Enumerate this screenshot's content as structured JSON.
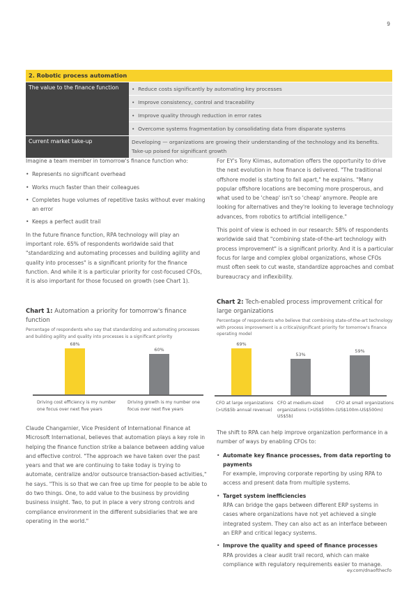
{
  "page_number": "9",
  "table": {
    "title": "2. Robotic process automation",
    "rows": [
      {
        "label": "The value to the finance function",
        "items": [
          "Reduce costs significantly by automating key processes",
          "Improve consistency, control and traceability",
          "Improve quality through reduction in error rates",
          "Overcome systems fragmentation by consolidating data from disparate systems"
        ]
      },
      {
        "label": "Current market take-up",
        "text": "Developing — organizations are growing their understanding of the technology and its benefits. Take-up poised for significant growth"
      }
    ]
  },
  "left": {
    "intro": "Imagine a team member in tomorrow's finance function who:",
    "bullets": [
      "Represents no significant overhead",
      "Works much faster than their colleagues",
      "Completes huge volumes of repetitive tasks without ever making an error",
      "Keeps a perfect audit trail"
    ],
    "para": "In the future finance function, RPA technology will play an important role. 65% of respondents worldwide said that \"standardizing and automating processes and building agility and quality into processes\" is a significant priority for the finance function. And while it is a particular priority for cost-focused CFOs, it is also important for those focused on growth (see Chart 1).",
    "para2": "Claude Changarnier, Vice President of International Finance at Microsoft International, believes that automation plays a key role in helping the finance function strike a balance between adding value and effective control. \"The approach we have taken over the past years and that we are continuing to take today is trying to automate, centralize and/or outsource transaction-based activities,\" he says. \"This is so that we can free up time for people to be able to do two things. One, to add value to the business by providing business insight. Two, to put in place a very strong controls and compliance environment in the different subsidiaries that we are operating in the world.\""
  },
  "right": {
    "para1": "For EY's Tony Klimas, automation offers the opportunity to drive the next evolution in how finance is delivered. \"The traditional offshore model is starting to fall apart,\" he explains. \"Many popular offshore locations are becoming more prosperous, and what used to be 'cheap' isn't so 'cheap' anymore. People are looking for alternatives and they're looking to leverage technology advances, from robotics to artificial intelligence.\"",
    "para2": "This point of view is echoed in our research: 58% of respondents worldwide said that \"combining state-of-the-art technology with process improvement\" is a significant priority. And it is a particular focus for large and complex global organizations, whose CFOs must often seek to cut waste, standardize approaches and combat bureaucracy and inflexibility.",
    "para3": "The shift to RPA can help improve organization performance in a number of ways by enabling CFOs to:",
    "bullets": [
      {
        "title": "Automate key finance processes, from data reporting to payments",
        "text": "For example, improving corporate reporting by using RPA to access and present data from multiple systems."
      },
      {
        "title": "Target system inefficiencies",
        "text": "RPA can bridge the gaps between different ERP systems in cases where organizations have not yet achieved a single integrated system. They can also act as an interface between an ERP and critical legacy systems."
      },
      {
        "title": "Improve the quality and speed of finance processes",
        "text": "RPA provides a clear audit trail record, which can make compliance with regulatory requirements easier to manage."
      }
    ]
  },
  "chart_data": [
    {
      "type": "bar",
      "title_prefix": "Chart 1:",
      "title": "Automation a priority for tomorrow's finance function",
      "subtitle": "Percentage of respondents who say that standardizing and automating processes and building agility and quality into processes is a significant priority",
      "categories": [
        "Driving cost efficiency is my number one focus over next five years",
        "Driving growth is my number one focus over next five years"
      ],
      "values": [
        68,
        60
      ],
      "labels": [
        "68%",
        "60%"
      ],
      "colors": [
        "#f8d12a",
        "#808285"
      ],
      "ylim": [
        0,
        72
      ]
    },
    {
      "type": "bar",
      "title_prefix": "Chart 2:",
      "title": "Tech-enabled process improvement critical for large organizations",
      "subtitle": "Percentage of respondents who believe that combining state-of-the-art technology with process improvement is a critical/significant priority for tomorrow's finance operating model",
      "categories": [
        "CFO at large organizations (>US$5b annual revenue)",
        "CFO at medium-sized organizations (>US$500m-US$5b)",
        "CFO at small organizations (US$100m-US$500m)"
      ],
      "values": [
        69,
        53,
        59
      ],
      "labels": [
        "69%",
        "53%",
        "59%"
      ],
      "colors": [
        "#f8d12a",
        "#808285",
        "#808285"
      ],
      "ylim": [
        0,
        72
      ]
    }
  ],
  "footer": "ey.com/dnaofthecfo"
}
